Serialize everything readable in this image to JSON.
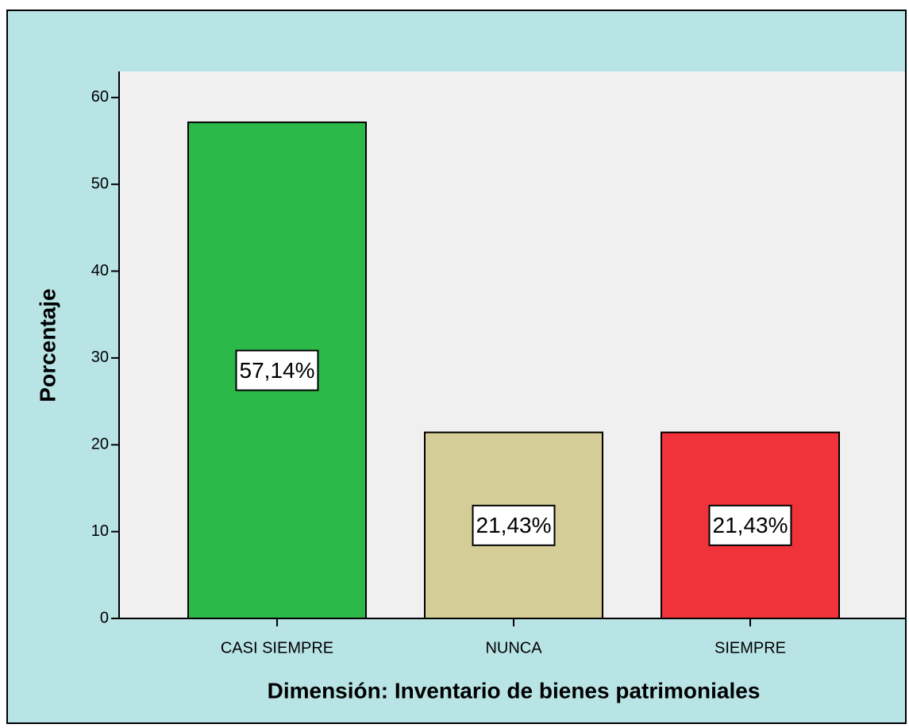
{
  "chart_data": {
    "type": "bar",
    "categories": [
      "CASI SIEMPRE",
      "NUNCA",
      "SIEMPRE"
    ],
    "values": [
      57.14,
      21.43,
      21.43
    ],
    "value_labels": [
      "57,14%",
      "21,43%",
      "21,43%"
    ],
    "colors": [
      "#2db84a",
      "#d4cd97",
      "#f0323a"
    ],
    "x_label": "Dimensión: Inventario de bienes patrimoniales",
    "y_label": "Porcentaje",
    "ylim": [
      0,
      63
    ],
    "yticks": [
      0,
      10,
      20,
      30,
      40,
      50,
      60
    ],
    "grid": false
  }
}
